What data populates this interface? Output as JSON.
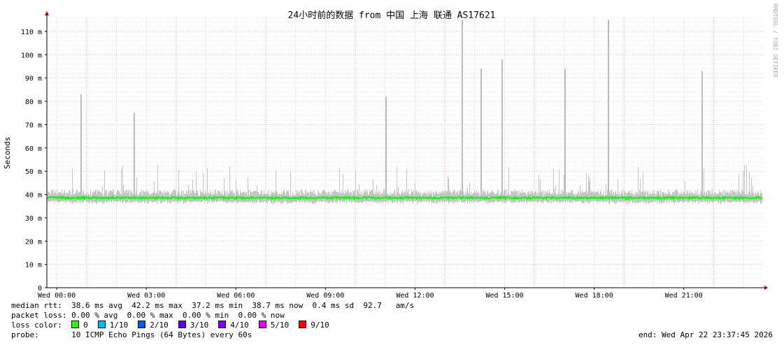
{
  "chart_data": {
    "type": "area",
    "title": "24小时前的数据 from  中国 上海 联通 AS17621",
    "ylabel": "Seconds",
    "ylim": [
      0,
      116
    ],
    "yticks": [
      {
        "v": 0,
        "label": "0"
      },
      {
        "v": 10,
        "label": "10 m"
      },
      {
        "v": 20,
        "label": "20 m"
      },
      {
        "v": 30,
        "label": "30 m"
      },
      {
        "v": 40,
        "label": "40 m"
      },
      {
        "v": 50,
        "label": "50 m"
      },
      {
        "v": 60,
        "label": "60 m"
      },
      {
        "v": 70,
        "label": "70 m"
      },
      {
        "v": 80,
        "label": "80 m"
      },
      {
        "v": 90,
        "label": "90 m"
      },
      {
        "v": 100,
        "label": "100 m"
      },
      {
        "v": 110,
        "label": "110 m"
      }
    ],
    "xrange_hours": [
      -0.33,
      23.7
    ],
    "xticks": [
      {
        "h": 0,
        "label": "Wed 00:00"
      },
      {
        "h": 3,
        "label": "Wed 03:00"
      },
      {
        "h": 6,
        "label": "Wed 06:00"
      },
      {
        "h": 9,
        "label": "Wed 09:00"
      },
      {
        "h": 12,
        "label": "Wed 12:00"
      },
      {
        "h": 15,
        "label": "Wed 15:00"
      },
      {
        "h": 18,
        "label": "Wed 18:00"
      },
      {
        "h": 21,
        "label": "Wed 21:00"
      }
    ],
    "grid": true,
    "median_ms": 38.6,
    "spikes": [
      {
        "h": 0.8,
        "max": 83
      },
      {
        "h": 2.58,
        "max": 75
      },
      {
        "h": 11.0,
        "max": 82
      },
      {
        "h": 13.55,
        "max": 115
      },
      {
        "h": 14.2,
        "max": 94
      },
      {
        "h": 14.9,
        "max": 98
      },
      {
        "h": 17.0,
        "max": 94
      },
      {
        "h": 18.45,
        "max": 115
      },
      {
        "h": 21.6,
        "max": 93
      }
    ],
    "colors": {
      "median": "#00ff00",
      "smoke": "#c0c0c0",
      "major_grid": "#ff9999",
      "minor_grid": "#cccccc"
    }
  },
  "legend": {
    "rtt_label": "median rtt:",
    "rtt": "38.6 ms avg  42.2 ms max  37.2 ms min  38.7 ms now  0.4 ms sd  92.7   am/s",
    "loss_label": "packet loss:",
    "loss": "0.00 % avg  0.00 % max  0.00 % min  0.00 % now",
    "color_label": "loss color:",
    "colors": [
      {
        "label": "0",
        "color": "#26ff00"
      },
      {
        "label": "1/10",
        "color": "#00b8ff"
      },
      {
        "label": "2/10",
        "color": "#0059ff"
      },
      {
        "label": "3/10",
        "color": "#5e00ff"
      },
      {
        "label": "4/10",
        "color": "#7e00ff"
      },
      {
        "label": "5/10",
        "color": "#dd00ff"
      },
      {
        "label": "9/10",
        "color": "#ff0000"
      }
    ],
    "probe_label": "probe:",
    "probe": "10 ICMP Echo Pings (64 Bytes) every 60s",
    "end": "end: Wed Apr 22 23:37:45 2026"
  },
  "watermark": "RRDTOOL / TOBI OETIKER"
}
